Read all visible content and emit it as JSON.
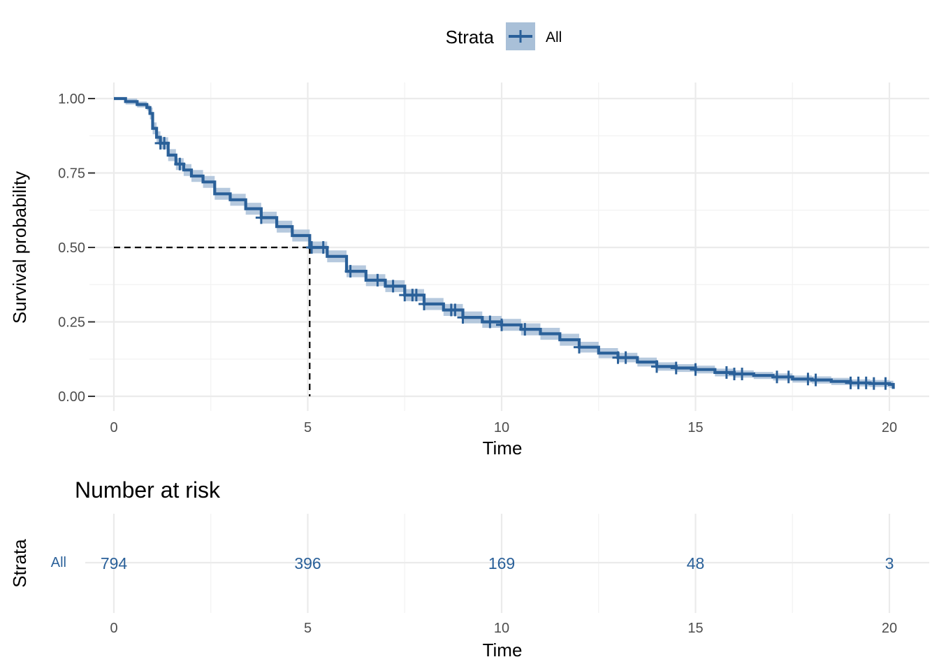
{
  "chart_data": {
    "type": "line",
    "legend": {
      "title": "Strata",
      "label": "All",
      "position": "top"
    },
    "colors": {
      "line": "#2A6099",
      "band": "#A9C0D8",
      "risk": "#2A6099"
    },
    "survival_plot": {
      "xlabel": "Time",
      "ylabel": "Survival probability",
      "xlim": [
        0,
        20
      ],
      "ylim": [
        0,
        1
      ],
      "x_ticks": [
        "0",
        "5",
        "10",
        "15",
        "20"
      ],
      "y_ticks": [
        "0.00",
        "0.25",
        "0.50",
        "0.75",
        "1.00"
      ],
      "grid": true,
      "median_line": {
        "x": 5.05,
        "y": 0.5
      },
      "series": [
        {
          "name": "All",
          "x": [
            0,
            0.3,
            0.6,
            0.85,
            0.93,
            1.0,
            1.1,
            1.2,
            1.4,
            1.6,
            1.8,
            2.0,
            2.3,
            2.6,
            3.0,
            3.4,
            3.8,
            4.2,
            4.6,
            5.05,
            5.5,
            6.0,
            6.5,
            7.0,
            7.5,
            8.0,
            8.5,
            9.0,
            9.5,
            10.0,
            10.5,
            11.0,
            11.5,
            12.0,
            12.5,
            13.0,
            13.5,
            14.0,
            14.5,
            15.0,
            15.5,
            16.0,
            16.5,
            17.0,
            17.5,
            18.0,
            18.5,
            19.0,
            19.5,
            20.0,
            20.1
          ],
          "y": [
            1.0,
            0.99,
            0.98,
            0.97,
            0.95,
            0.9,
            0.87,
            0.85,
            0.81,
            0.78,
            0.76,
            0.74,
            0.72,
            0.68,
            0.66,
            0.63,
            0.6,
            0.57,
            0.54,
            0.5,
            0.47,
            0.42,
            0.39,
            0.37,
            0.34,
            0.31,
            0.29,
            0.265,
            0.25,
            0.24,
            0.225,
            0.21,
            0.19,
            0.165,
            0.145,
            0.13,
            0.115,
            0.1,
            0.095,
            0.09,
            0.08,
            0.075,
            0.07,
            0.065,
            0.058,
            0.055,
            0.05,
            0.045,
            0.043,
            0.04,
            0.025
          ],
          "lower": [
            1.0,
            0.98,
            0.97,
            0.96,
            0.93,
            0.88,
            0.85,
            0.83,
            0.79,
            0.76,
            0.74,
            0.72,
            0.7,
            0.66,
            0.64,
            0.61,
            0.58,
            0.55,
            0.52,
            0.48,
            0.45,
            0.4,
            0.37,
            0.35,
            0.32,
            0.29,
            0.27,
            0.245,
            0.23,
            0.22,
            0.205,
            0.19,
            0.17,
            0.147,
            0.128,
            0.114,
            0.1,
            0.086,
            0.082,
            0.077,
            0.067,
            0.063,
            0.058,
            0.053,
            0.046,
            0.043,
            0.038,
            0.033,
            0.031,
            0.028,
            0.018
          ],
          "upper": [
            1.0,
            1.0,
            0.99,
            0.98,
            0.97,
            0.92,
            0.89,
            0.87,
            0.83,
            0.8,
            0.78,
            0.76,
            0.74,
            0.7,
            0.68,
            0.65,
            0.62,
            0.59,
            0.56,
            0.52,
            0.49,
            0.44,
            0.41,
            0.39,
            0.36,
            0.33,
            0.31,
            0.285,
            0.27,
            0.26,
            0.245,
            0.23,
            0.21,
            0.183,
            0.162,
            0.146,
            0.13,
            0.114,
            0.108,
            0.103,
            0.093,
            0.087,
            0.082,
            0.077,
            0.07,
            0.067,
            0.062,
            0.057,
            0.055,
            0.052,
            0.045
          ],
          "censor_x": [
            1.2,
            1.3,
            1.7,
            3.8,
            5.1,
            5.4,
            6.1,
            6.8,
            7.2,
            7.5,
            7.7,
            7.8,
            8.0,
            8.7,
            8.8,
            9.0,
            9.7,
            10.0,
            10.6,
            12.0,
            13.0,
            13.2,
            14.0,
            14.5,
            15.0,
            15.8,
            16.0,
            16.2,
            17.1,
            17.4,
            17.9,
            18.1,
            19.0,
            19.2,
            19.4,
            19.6,
            19.9
          ]
        }
      ]
    },
    "risk_table": {
      "title": "Number at risk",
      "xlabel": "Time",
      "ylabel": "Strata",
      "strata": [
        "All"
      ],
      "x_ticks": [
        "0",
        "5",
        "10",
        "15",
        "20"
      ],
      "times": [
        0,
        5,
        10,
        15,
        20
      ],
      "values": [
        "794",
        "396",
        "169",
        "48",
        "3"
      ]
    }
  }
}
